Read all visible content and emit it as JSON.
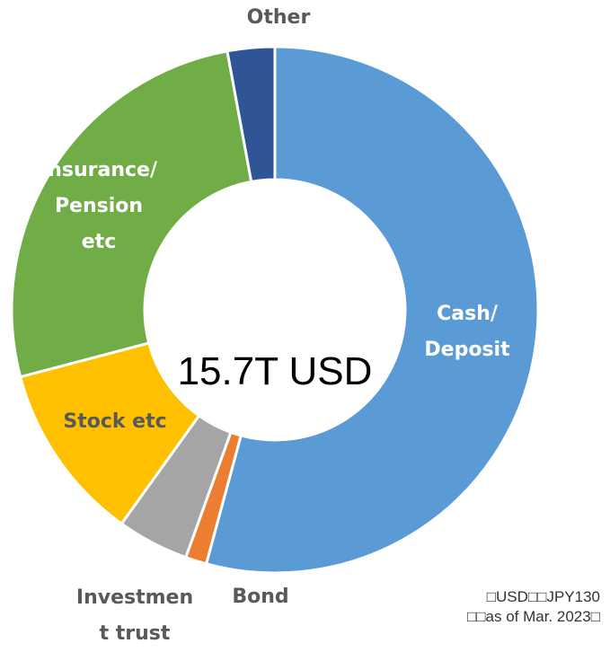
{
  "chart_data": {
    "type": "donut",
    "categories": [
      "Cash/\nDeposit",
      "Bond",
      "Investmen\nt trust",
      "Stock etc",
      "Insurance/\nPension\netc",
      "Other"
    ],
    "values": [
      54.2,
      1.3,
      4.4,
      11.0,
      26.2,
      2.9
    ],
    "colors": [
      "#5b9bd5",
      "#ed7d31",
      "#a5a5a5",
      "#ffc000",
      "#70ad47",
      "#2f5597"
    ],
    "center_label": "15.7T USD",
    "note": "□USD□□JPY130\n□□as of Mar. 2023□"
  }
}
